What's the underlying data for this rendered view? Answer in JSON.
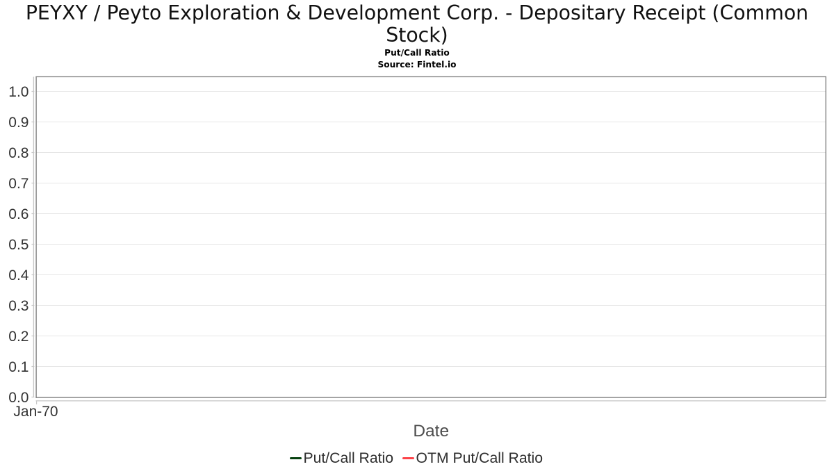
{
  "chart_data": {
    "type": "line",
    "title": "PEYXY / Peyto Exploration & Development Corp. - Depositary Receipt (Common Stock)",
    "subtitle": "Put/Call Ratio",
    "source_note": "Source: Fintel.io",
    "xlabel": "Date",
    "ylabel": "",
    "ylim": [
      0,
      1.05
    ],
    "yticks": [
      {
        "v": 0.0,
        "label": "0.0"
      },
      {
        "v": 0.1,
        "label": "0.1"
      },
      {
        "v": 0.2,
        "label": "0.2"
      },
      {
        "v": 0.3,
        "label": "0.3"
      },
      {
        "v": 0.4,
        "label": "0.4"
      },
      {
        "v": 0.5,
        "label": "0.5"
      },
      {
        "v": 0.6,
        "label": "0.6"
      },
      {
        "v": 0.7,
        "label": "0.7"
      },
      {
        "v": 0.8,
        "label": "0.8"
      },
      {
        "v": 0.9,
        "label": "0.9"
      },
      {
        "v": 1.0,
        "label": "1.0"
      }
    ],
    "xticks": [
      {
        "pos": 0,
        "label": "Jan-70"
      }
    ],
    "grid": true,
    "legend_position": "bottom-center",
    "series": [
      {
        "name": "Put/Call Ratio",
        "color": "#07410f",
        "x": [],
        "values": []
      },
      {
        "name": "OTM Put/Call Ratio",
        "color": "#fc4349",
        "x": [],
        "values": []
      }
    ]
  },
  "colors": {
    "background": "#ffffff",
    "plot_border": "#7d7d7d",
    "grid_line": "#e6e6e6",
    "axis_line": "#c6c6c6",
    "tick_mark": "#c9c9c9",
    "tick_label": "#333333",
    "axis_title": "#4d4d4d",
    "title_text": "#111111",
    "legend_text": "#2e2e2e"
  }
}
